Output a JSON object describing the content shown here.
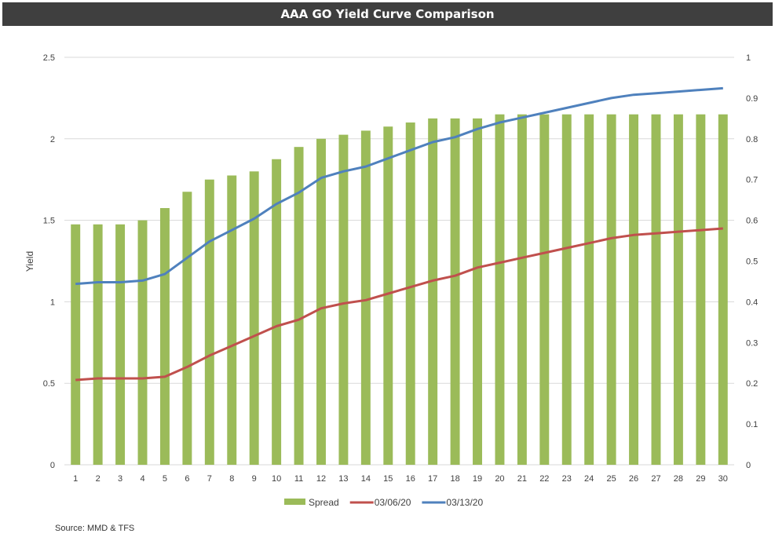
{
  "chart_data": {
    "type": "bar",
    "title": "AAA GO Yield Curve Comparison",
    "categories": [
      "1",
      "2",
      "3",
      "4",
      "5",
      "6",
      "7",
      "8",
      "9",
      "10",
      "11",
      "12",
      "13",
      "14",
      "15",
      "16",
      "17",
      "18",
      "19",
      "20",
      "21",
      "22",
      "23",
      "24",
      "25",
      "26",
      "27",
      "28",
      "29",
      "30"
    ],
    "ylabel": "Yield",
    "ylim": [
      0,
      2.5
    ],
    "y_ticks": [
      "0",
      "0.5",
      "1",
      "1.5",
      "2",
      "2.5"
    ],
    "y2lim": [
      0,
      1
    ],
    "y2_ticks": [
      "0",
      "0.1",
      "0.2",
      "0.3",
      "0.4",
      "0.5",
      "0.6",
      "0.7",
      "0.8",
      "0.9",
      "1"
    ],
    "grid": true,
    "legend_position": "bottom",
    "series": [
      {
        "name": "Spread",
        "type": "bar",
        "axis": "right",
        "color": "#9BBB59",
        "values": [
          0.59,
          0.59,
          0.59,
          0.6,
          0.63,
          0.67,
          0.7,
          0.71,
          0.72,
          0.75,
          0.78,
          0.8,
          0.81,
          0.82,
          0.83,
          0.84,
          0.85,
          0.85,
          0.85,
          0.86,
          0.86,
          0.86,
          0.86,
          0.86,
          0.86,
          0.86,
          0.86,
          0.86,
          0.86,
          0.86
        ]
      },
      {
        "name": "03/06/20",
        "type": "line",
        "axis": "left",
        "color": "#C0504D",
        "values": [
          0.52,
          0.53,
          0.53,
          0.53,
          0.54,
          0.6,
          0.67,
          0.73,
          0.79,
          0.85,
          0.89,
          0.96,
          0.99,
          1.01,
          1.05,
          1.09,
          1.13,
          1.16,
          1.21,
          1.24,
          1.27,
          1.3,
          1.33,
          1.36,
          1.39,
          1.41,
          1.42,
          1.43,
          1.44,
          1.45
        ]
      },
      {
        "name": "03/13/20",
        "type": "line",
        "axis": "left",
        "color": "#4F81BD",
        "values": [
          1.11,
          1.12,
          1.12,
          1.13,
          1.17,
          1.27,
          1.37,
          1.44,
          1.51,
          1.6,
          1.67,
          1.76,
          1.8,
          1.83,
          1.88,
          1.93,
          1.98,
          2.01,
          2.06,
          2.1,
          2.13,
          2.16,
          2.19,
          2.22,
          2.25,
          2.27,
          2.28,
          2.29,
          2.3,
          2.31
        ]
      }
    ],
    "source": "Source: MMD & TFS"
  }
}
